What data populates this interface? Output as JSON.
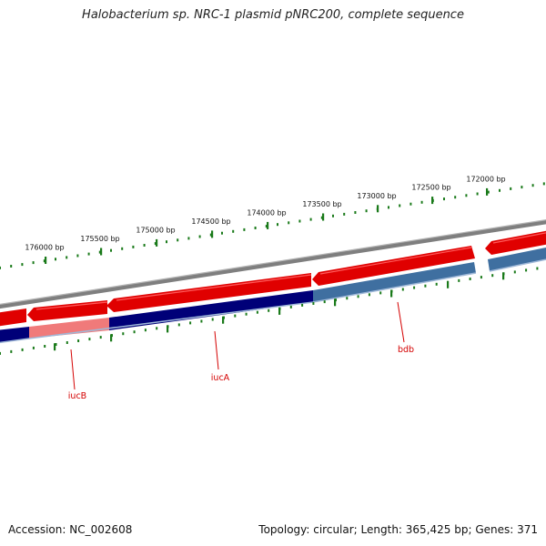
{
  "title": "Halobacterium sp. NRC-1 plasmid pNRC200, complete sequence",
  "footer": {
    "accession": "Accession: NC_002608",
    "summary": "Topology: circular; Length: 365,425 bp; Genes: 371"
  },
  "colors": {
    "backbone": "#7f7f7f",
    "forward_gene": "#e00000",
    "forward_gene_highlight": "#f06f6f",
    "reverse_gene_dark": "#000078",
    "reverse_gene_light": "#3f6fa0",
    "ruler": "#1a7a1a",
    "label": "#d40000"
  },
  "scale_labels": [
    "176000 bp",
    "175500 bp",
    "175000 bp",
    "174500 bp",
    "174000 bp",
    "173500 bp",
    "173000 bp",
    "172500 bp",
    "172000 bp"
  ],
  "genes": [
    {
      "name": "iucB"
    },
    {
      "name": "iucA"
    },
    {
      "name": "bdb"
    }
  ]
}
